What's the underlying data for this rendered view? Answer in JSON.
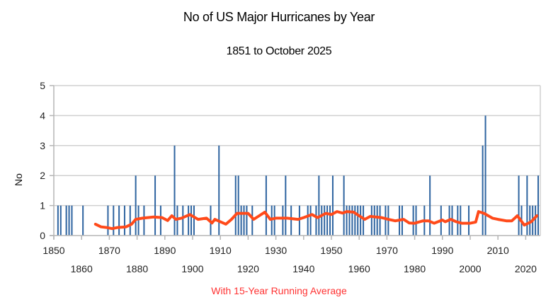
{
  "chart_data": {
    "type": "bar",
    "title": "No of US Major Hurricanes by Year",
    "subtitle": "1851 to October 2025",
    "footnote": "With 15-Year Running Average",
    "xlabel": "",
    "ylabel": "No",
    "xlim": [
      1850,
      2026
    ],
    "ylim": [
      0,
      5
    ],
    "yticks": [
      "0",
      "1",
      "2",
      "3",
      "4",
      "5"
    ],
    "xticks_top": [
      "1850",
      "1870",
      "1890",
      "1910",
      "1930",
      "1950",
      "1970",
      "1990",
      "2010"
    ],
    "xticks_bottom": [
      "1860",
      "1880",
      "1900",
      "1920",
      "1940",
      "1960",
      "1980",
      "2000",
      "2020"
    ],
    "grid": true,
    "colors": {
      "bars": "#2e64a0",
      "average": "#ff4a1a",
      "footnote": "#ff3333",
      "grid": "#d0d0d0"
    },
    "series": [
      {
        "name": "Major Hurricanes",
        "type": "bar",
        "points": [
          [
            1851,
            1
          ],
          [
            1852,
            1
          ],
          [
            1854,
            1
          ],
          [
            1855,
            1
          ],
          [
            1856,
            1
          ],
          [
            1860,
            1
          ],
          [
            1869,
            1
          ],
          [
            1871,
            1
          ],
          [
            1873,
            1
          ],
          [
            1875,
            1
          ],
          [
            1877,
            1
          ],
          [
            1879,
            2
          ],
          [
            1880,
            1
          ],
          [
            1882,
            1
          ],
          [
            1886,
            2
          ],
          [
            1888,
            1
          ],
          [
            1893,
            3
          ],
          [
            1894,
            1
          ],
          [
            1896,
            1
          ],
          [
            1898,
            1
          ],
          [
            1899,
            1
          ],
          [
            1900,
            1
          ],
          [
            1906,
            1
          ],
          [
            1909,
            3
          ],
          [
            1915,
            2
          ],
          [
            1916,
            2
          ],
          [
            1917,
            1
          ],
          [
            1918,
            1
          ],
          [
            1919,
            1
          ],
          [
            1921,
            1
          ],
          [
            1926,
            2
          ],
          [
            1928,
            1
          ],
          [
            1929,
            1
          ],
          [
            1932,
            1
          ],
          [
            1933,
            2
          ],
          [
            1935,
            1
          ],
          [
            1938,
            1
          ],
          [
            1941,
            1
          ],
          [
            1942,
            1
          ],
          [
            1944,
            1
          ],
          [
            1945,
            2
          ],
          [
            1946,
            1
          ],
          [
            1947,
            1
          ],
          [
            1948,
            1
          ],
          [
            1949,
            1
          ],
          [
            1950,
            2
          ],
          [
            1954,
            2
          ],
          [
            1955,
            1
          ],
          [
            1956,
            1
          ],
          [
            1957,
            1
          ],
          [
            1958,
            1
          ],
          [
            1959,
            1
          ],
          [
            1960,
            1
          ],
          [
            1961,
            1
          ],
          [
            1964,
            1
          ],
          [
            1965,
            1
          ],
          [
            1966,
            1
          ],
          [
            1967,
            1
          ],
          [
            1969,
            1
          ],
          [
            1970,
            1
          ],
          [
            1974,
            1
          ],
          [
            1975,
            1
          ],
          [
            1979,
            1
          ],
          [
            1980,
            1
          ],
          [
            1983,
            1
          ],
          [
            1985,
            2
          ],
          [
            1989,
            1
          ],
          [
            1992,
            1
          ],
          [
            1993,
            1
          ],
          [
            1995,
            1
          ],
          [
            1996,
            1
          ],
          [
            1999,
            1
          ],
          [
            2004,
            3
          ],
          [
            2005,
            4
          ],
          [
            2017,
            2
          ],
          [
            2018,
            1
          ],
          [
            2020,
            2
          ],
          [
            2021,
            1
          ],
          [
            2022,
            1
          ],
          [
            2023,
            1
          ],
          [
            2024,
            2
          ]
        ]
      },
      {
        "name": "15-Year Running Average",
        "type": "line",
        "points": [
          [
            1865,
            0.38
          ],
          [
            1867,
            0.29
          ],
          [
            1869,
            0.27
          ],
          [
            1871,
            0.23
          ],
          [
            1873,
            0.27
          ],
          [
            1876,
            0.29
          ],
          [
            1878,
            0.38
          ],
          [
            1879.5,
            0.54
          ],
          [
            1882,
            0.58
          ],
          [
            1886,
            0.62
          ],
          [
            1889,
            0.6
          ],
          [
            1891,
            0.5
          ],
          [
            1892.5,
            0.66
          ],
          [
            1894,
            0.54
          ],
          [
            1896,
            0.58
          ],
          [
            1899,
            0.7
          ],
          [
            1902,
            0.54
          ],
          [
            1905,
            0.58
          ],
          [
            1907,
            0.42
          ],
          [
            1908,
            0.54
          ],
          [
            1912,
            0.38
          ],
          [
            1914,
            0.54
          ],
          [
            1916,
            0.74
          ],
          [
            1920,
            0.74
          ],
          [
            1922,
            0.54
          ],
          [
            1924,
            0.66
          ],
          [
            1926,
            0.78
          ],
          [
            1928,
            0.54
          ],
          [
            1930,
            0.58
          ],
          [
            1934,
            0.58
          ],
          [
            1938,
            0.54
          ],
          [
            1940,
            0.6
          ],
          [
            1943,
            0.7
          ],
          [
            1945,
            0.6
          ],
          [
            1948,
            0.74
          ],
          [
            1950,
            0.7
          ],
          [
            1952,
            0.8
          ],
          [
            1954,
            0.75
          ],
          [
            1955.5,
            0.8
          ],
          [
            1958,
            0.78
          ],
          [
            1960,
            0.66
          ],
          [
            1962,
            0.54
          ],
          [
            1964,
            0.64
          ],
          [
            1966,
            0.62
          ],
          [
            1968,
            0.6
          ],
          [
            1970.5,
            0.54
          ],
          [
            1973,
            0.49
          ],
          [
            1976,
            0.54
          ],
          [
            1978,
            0.42
          ],
          [
            1980,
            0.41
          ],
          [
            1983,
            0.49
          ],
          [
            1985,
            0.49
          ],
          [
            1987,
            0.41
          ],
          [
            1990,
            0.52
          ],
          [
            1991,
            0.46
          ],
          [
            1993,
            0.54
          ],
          [
            1995,
            0.46
          ],
          [
            1997,
            0.41
          ],
          [
            2000,
            0.41
          ],
          [
            2002,
            0.45
          ],
          [
            2003,
            0.8
          ],
          [
            2005,
            0.74
          ],
          [
            2008,
            0.58
          ],
          [
            2010,
            0.54
          ],
          [
            2013,
            0.49
          ],
          [
            2015,
            0.49
          ],
          [
            2017,
            0.66
          ],
          [
            2019.5,
            0.35
          ],
          [
            2022,
            0.46
          ],
          [
            2024,
            0.66
          ]
        ]
      }
    ]
  }
}
